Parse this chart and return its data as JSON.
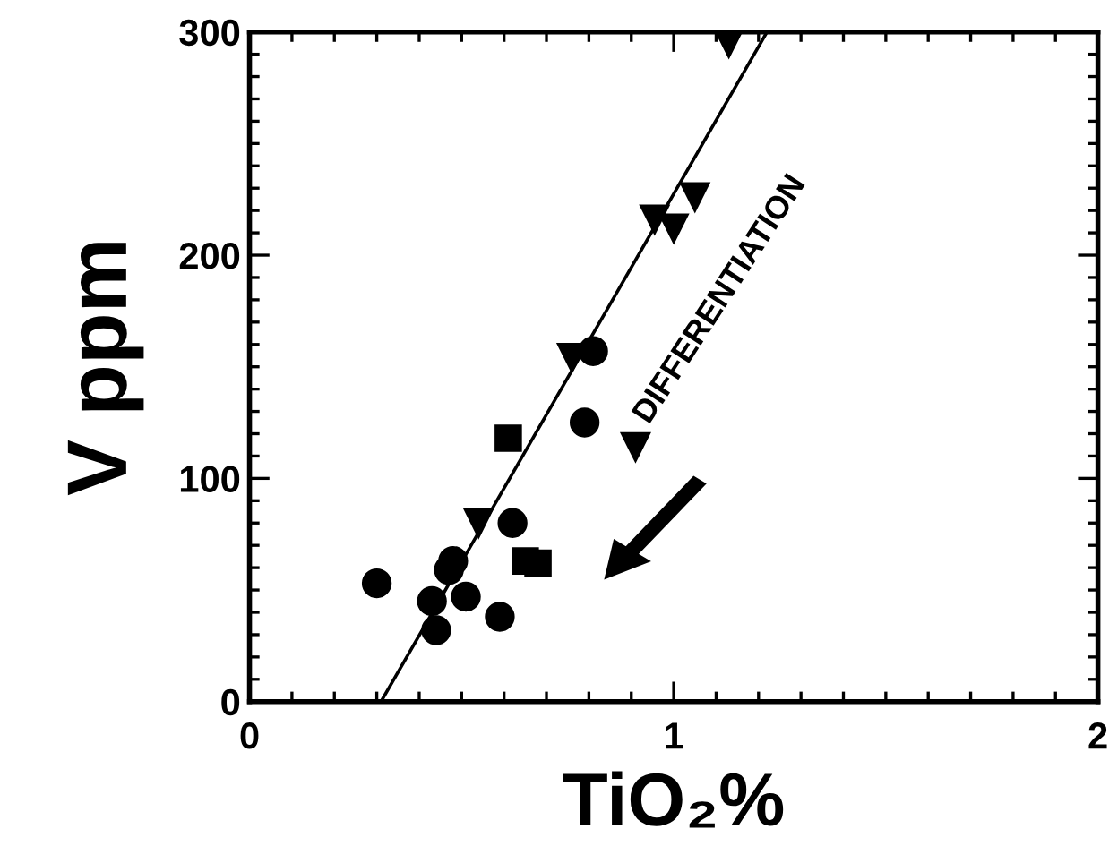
{
  "chart_data": {
    "type": "scatter",
    "xlabel": "TiO₂%",
    "ylabel": "V ppm",
    "xlim": [
      0,
      2
    ],
    "ylim": [
      0,
      300
    ],
    "xticks": [
      0,
      1,
      2
    ],
    "yticks": [
      0,
      100,
      200,
      300
    ],
    "grid": false,
    "legend": false,
    "annotations": [
      "DIFFERENTIATION"
    ],
    "series": [
      {
        "marker": "triangle",
        "color": "#000000",
        "x": [
          1.13,
          0.955,
          1.0,
          1.05,
          0.76,
          0.91,
          0.54
        ],
        "values": [
          295,
          216,
          212,
          226,
          154,
          114,
          80
        ]
      },
      {
        "marker": "circle",
        "color": "#000000",
        "x": [
          0.81,
          0.79,
          0.62,
          0.3,
          0.43,
          0.51,
          0.48
        ],
        "values": [
          157,
          125,
          80,
          53,
          45,
          47,
          63
        ]
      },
      {
        "marker": "square",
        "color": "#000000",
        "x": [
          0.61,
          0.65,
          0.68
        ],
        "values": [
          118,
          63,
          62
        ]
      },
      {
        "marker": "circle",
        "color": "#000000",
        "x": [
          0.47,
          0.44,
          0.59
        ],
        "values": [
          59,
          32,
          38
        ]
      },
      {
        "type": "line",
        "marker": "none",
        "line_style": "solid",
        "color": "#000000",
        "x": [
          0.31,
          1.22
        ],
        "values": [
          0,
          300
        ]
      }
    ]
  }
}
